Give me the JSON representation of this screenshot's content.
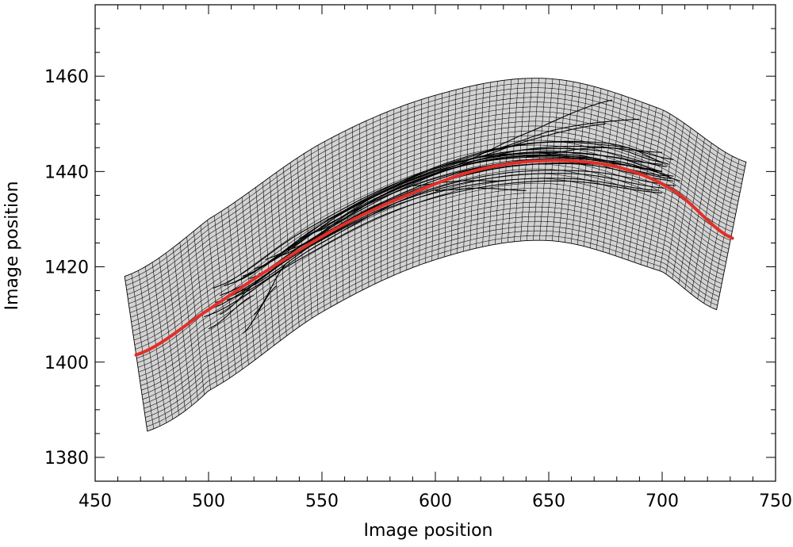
{
  "chart_data": {
    "type": "line",
    "title": "",
    "xlabel": "Image position",
    "ylabel": "Image position",
    "xlim": [
      450,
      750
    ],
    "ylim": [
      1375,
      1475
    ],
    "xticks": [
      450,
      500,
      550,
      600,
      650,
      700,
      750
    ],
    "yticks": [
      1380,
      1400,
      1420,
      1440,
      1460
    ],
    "x_minor_step": 10,
    "y_minor_step": 5,
    "grid": false,
    "legend": "none",
    "colors": {
      "mesh_fill": "#d3d3d3",
      "mesh_line": "#000000",
      "traces": "#000000",
      "fit": "#e0302a"
    },
    "fit_curve": {
      "name": "",
      "x": [
        468,
        500,
        530,
        560,
        590,
        620,
        650,
        680,
        705,
        731
      ],
      "y": [
        1401.5,
        1411,
        1420.5,
        1429,
        1435.5,
        1440.5,
        1442.3,
        1441,
        1436,
        1426
      ]
    },
    "mesh": {
      "description_values": "curved grid band following the fit curve",
      "rows": 34,
      "cols": 90,
      "top_edge": {
        "x": [
          463,
          500,
          550,
          600,
          650,
          700,
          737
        ],
        "y": [
          1418,
          1430,
          1446,
          1456,
          1459.5,
          1453,
          1442
        ]
      },
      "bottom_edge": {
        "x": [
          473,
          500,
          550,
          600,
          650,
          700,
          724
        ],
        "y": [
          1385.5,
          1394,
          1410.5,
          1421.5,
          1425.5,
          1419,
          1411
        ]
      }
    },
    "traces": [
      {
        "x": [
          502,
          540,
          580,
          620,
          660,
          700
        ],
        "y": [
          1415.5,
          1427,
          1437,
          1443,
          1443.5,
          1440
        ]
      },
      {
        "x": [
          505,
          545,
          585,
          625,
          665,
          705
        ],
        "y": [
          1414,
          1425.5,
          1435,
          1440.5,
          1441.5,
          1438
        ]
      },
      {
        "x": [
          510,
          550,
          590,
          630,
          670,
          702
        ],
        "y": [
          1416.5,
          1429,
          1438.5,
          1444,
          1444.5,
          1441
        ]
      },
      {
        "x": [
          500,
          540,
          580,
          620,
          660,
          698
        ],
        "y": [
          1411,
          1423,
          1432.5,
          1437.5,
          1438.5,
          1436
        ]
      },
      {
        "x": [
          515,
          555,
          595,
          635,
          675,
          705
        ],
        "y": [
          1418,
          1430.5,
          1440,
          1445.5,
          1446,
          1442.5
        ]
      },
      {
        "x": [
          520,
          560,
          600,
          640,
          680,
          700
        ],
        "y": [
          1419.5,
          1431.5,
          1440,
          1444,
          1443,
          1440
        ]
      },
      {
        "x": [
          508,
          548,
          588,
          628,
          668,
          706
        ],
        "y": [
          1413,
          1424.5,
          1434.5,
          1439.5,
          1440,
          1437
        ]
      },
      {
        "x": [
          525,
          565,
          605,
          645,
          685,
          703
        ],
        "y": [
          1421.5,
          1433,
          1441.5,
          1446,
          1445,
          1441.5
        ]
      },
      {
        "x": [
          498,
          538,
          578,
          618,
          658,
          700
        ],
        "y": [
          1409.5,
          1421,
          1431,
          1436.5,
          1438,
          1435.5
        ]
      },
      {
        "x": [
          530,
          570,
          610,
          650,
          690
        ],
        "y": [
          1422,
          1433.5,
          1441,
          1443.5,
          1441
        ]
      },
      {
        "x": [
          512,
          552,
          592,
          632,
          672,
          704
        ],
        "y": [
          1414.5,
          1426.5,
          1436,
          1441,
          1441.5,
          1438.5
        ]
      },
      {
        "x": [
          535,
          575,
          615,
          655,
          695,
          708
        ],
        "y": [
          1423.5,
          1434.5,
          1441.5,
          1443,
          1440.5,
          1438
        ]
      },
      {
        "x": [
          503,
          543,
          583,
          623,
          663,
          701
        ],
        "y": [
          1412.5,
          1424,
          1433.5,
          1438.5,
          1439.5,
          1436.5
        ]
      },
      {
        "x": [
          518,
          558,
          598,
          638,
          678,
          699
        ],
        "y": [
          1417.5,
          1429.5,
          1439,
          1444.5,
          1445,
          1442
        ]
      },
      {
        "x": [
          540,
          580,
          620,
          660,
          700
        ],
        "y": [
          1426,
          1436.5,
          1442.5,
          1444,
          1441.5
        ]
      },
      {
        "x": [
          507,
          547,
          587,
          627,
          667,
          703
        ],
        "y": [
          1416,
          1427.5,
          1436.5,
          1441.5,
          1442,
          1439
        ]
      },
      {
        "x": [
          522,
          562,
          602,
          642,
          682,
          705
        ],
        "y": [
          1418.5,
          1430,
          1438.5,
          1442.5,
          1442,
          1439
        ]
      },
      {
        "x": [
          545,
          585,
          625,
          665,
          700
        ],
        "y": [
          1427,
          1437,
          1442.5,
          1443,
          1440
        ]
      },
      {
        "x": [
          500,
          520
        ],
        "y": [
          1407,
          1414
        ]
      },
      {
        "x": [
          515,
          530
        ],
        "y": [
          1406,
          1416
        ]
      },
      {
        "x": [
          505,
          525
        ],
        "y": [
          1410,
          1418
        ]
      },
      {
        "x": [
          520,
          535
        ],
        "y": [
          1410,
          1421
        ]
      },
      {
        "x": [
          600,
          640,
          678
        ],
        "y": [
          1440,
          1448,
          1455
        ]
      },
      {
        "x": [
          620,
          655,
          690
        ],
        "y": [
          1444,
          1449,
          1451
        ]
      },
      {
        "x": [
          610,
          645,
          675
        ],
        "y": [
          1442,
          1447,
          1450
        ]
      },
      {
        "x": [
          640,
          670,
          700
        ],
        "y": [
          1443,
          1445,
          1444
        ]
      },
      {
        "x": [
          600,
          620,
          640
        ],
        "y": [
          1436,
          1436.5,
          1436
        ]
      },
      {
        "x": [
          590,
          610,
          630
        ],
        "y": [
          1437,
          1438,
          1438
        ]
      }
    ]
  }
}
